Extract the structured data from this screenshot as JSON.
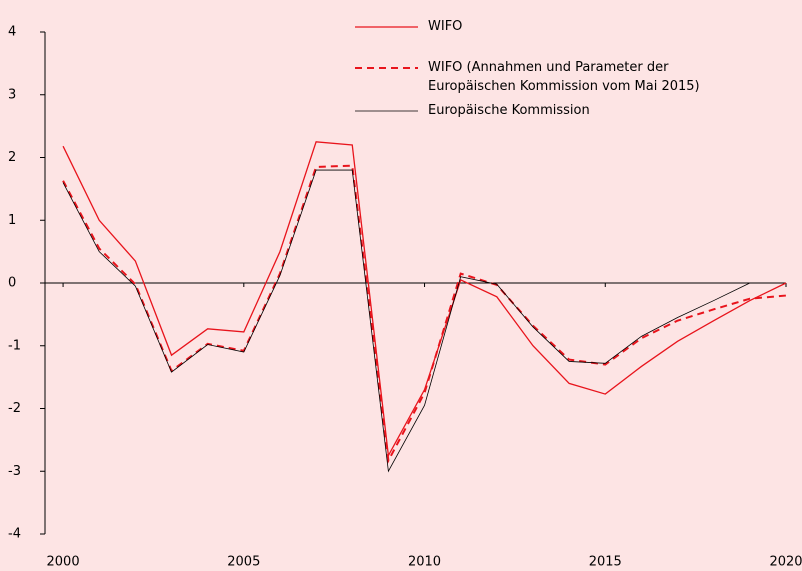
{
  "chart_data": {
    "type": "line",
    "x": [
      2000,
      2001,
      2002,
      2003,
      2004,
      2005,
      2006,
      2007,
      2008,
      2009,
      2010,
      2011,
      2012,
      2013,
      2014,
      2015,
      2016,
      2017,
      2018,
      2019,
      2020
    ],
    "series": [
      {
        "name": "WIFO",
        "color": "#e8141c",
        "dash": false,
        "values": [
          2.18,
          1.0,
          0.35,
          -1.15,
          -0.73,
          -0.78,
          0.5,
          2.25,
          2.2,
          -2.75,
          -1.7,
          0.05,
          -0.22,
          -1.0,
          -1.6,
          -1.77,
          -1.33,
          -0.93,
          -0.6,
          -0.28,
          0.0
        ]
      },
      {
        "name": "WIFO (Annahmen und Parameter der Europäischen Kommission vom Mai 2015)",
        "color": "#e8141c",
        "dash": true,
        "values": [
          1.63,
          0.55,
          -0.02,
          -1.4,
          -0.97,
          -1.08,
          0.15,
          1.85,
          1.87,
          -2.83,
          -1.75,
          0.15,
          -0.03,
          -0.68,
          -1.22,
          -1.3,
          -0.88,
          -0.6,
          -0.42,
          -0.25,
          -0.2
        ]
      },
      {
        "name": "Europäische Kommission",
        "color": "#000000",
        "dash": false,
        "values": [
          1.6,
          0.5,
          -0.05,
          -1.42,
          -0.98,
          -1.1,
          0.12,
          1.8,
          1.8,
          -3.0,
          -1.95,
          0.1,
          -0.02,
          -0.7,
          -1.25,
          -1.28,
          -0.85,
          -0.55,
          -0.28,
          0.0,
          null
        ]
      }
    ],
    "xlim": [
      1999.5,
      2020
    ],
    "xticks": [
      2000,
      2005,
      2010,
      2015,
      2020
    ],
    "ylim": [
      -4,
      4
    ],
    "yticks": [
      -4,
      -3,
      -2,
      -1,
      0,
      1,
      2,
      3,
      4
    ]
  }
}
